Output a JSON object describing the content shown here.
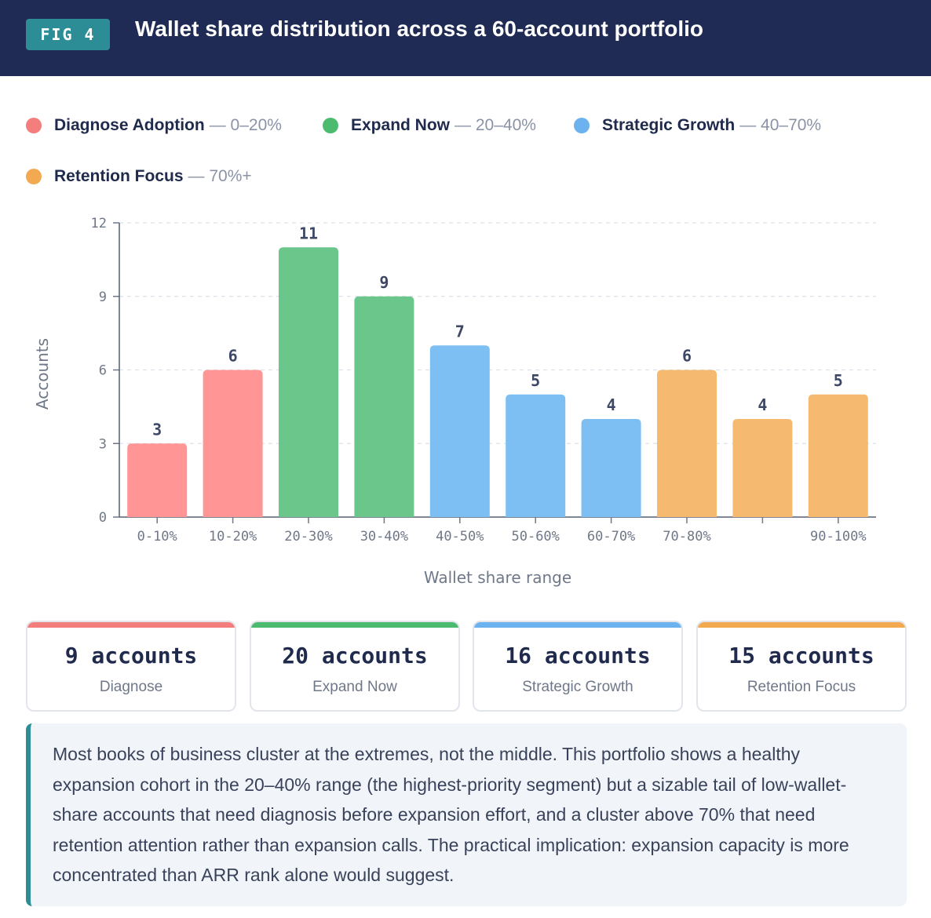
{
  "header": {
    "badge": "FIG 4",
    "title": "Wallet share distribution across a 60-account portfolio"
  },
  "legend": [
    {
      "name": "Diagnose Adoption",
      "range": "— 0–20%",
      "color": "#f47e7e"
    },
    {
      "name": "Expand Now",
      "range": "— 20–40%",
      "color": "#4cba6f"
    },
    {
      "name": "Strategic Growth",
      "range": "— 40–70%",
      "color": "#6cb2ee"
    },
    {
      "name": "Retention Focus",
      "range": "— 70%+",
      "color": "#f3a94f"
    }
  ],
  "chart_data": {
    "type": "bar",
    "title": "",
    "xlabel": "Wallet share range",
    "ylabel": "Accounts",
    "ylim": [
      0,
      12
    ],
    "yticks": [
      0,
      3,
      6,
      9,
      12
    ],
    "categories": [
      "0-10%",
      "10-20%",
      "20-30%",
      "30-40%",
      "40-50%",
      "50-60%",
      "60-70%",
      "70-80%",
      "",
      "90-100%"
    ],
    "values": [
      3,
      6,
      11,
      9,
      7,
      5,
      4,
      6,
      4,
      5
    ],
    "bar_colors": [
      "#ff9595",
      "#ff9595",
      "#6ac68b",
      "#6ac68b",
      "#7dbff2",
      "#7dbff2",
      "#7dbff2",
      "#f5b96f",
      "#f5b96f",
      "#f5b96f"
    ],
    "grid": true
  },
  "cards": [
    {
      "count": "9 accounts",
      "label": "Diagnose",
      "color": "#f47e7e"
    },
    {
      "count": "20 accounts",
      "label": "Expand Now",
      "color": "#4cba6f"
    },
    {
      "count": "16 accounts",
      "label": "Strategic Growth",
      "color": "#6cb2ee"
    },
    {
      "count": "15 accounts",
      "label": "Retention Focus",
      "color": "#f3a94f"
    }
  ],
  "note": "Most books of business cluster at the extremes, not the middle. This portfolio shows a healthy expansion cohort in the 20–40% range (the highest-priority segment) but a sizable tail of low-wallet-share accounts that need diagnosis before expansion effort, and a cluster above 70% that need retention attention rather than expansion calls. The practical implication: expansion capacity is more concentrated than ARR rank alone would suggest."
}
